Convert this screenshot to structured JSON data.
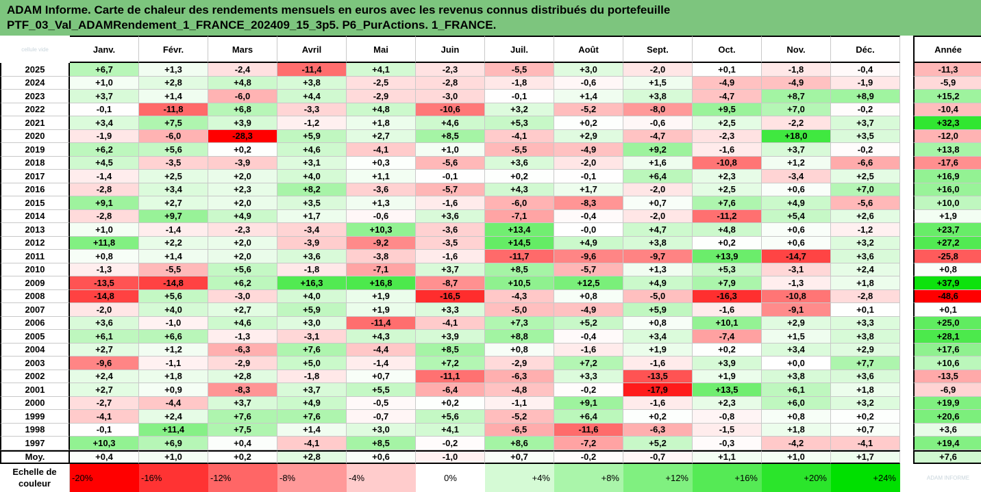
{
  "title": {
    "line1": "ADAM Informe. Carte de chaleur des rendements mensuels en euros avec les revenus connus distribués du portefeuille",
    "line2": "PTF_03_Val_ADAMRendement_1_FRANCE_202409_15_3p5. P6_PurActions. 1_FRANCE."
  },
  "chart_data": {
    "type": "heatmap",
    "corner_watermark": "cellule vide",
    "bottom_watermark": "ADAM INFORME",
    "columns": [
      "Janv.",
      "Févr.",
      "Mars",
      "Avril",
      "Mai",
      "Juin",
      "Juil.",
      "Août",
      "Sept.",
      "Oct.",
      "Nov.",
      "Déc."
    ],
    "annual_label": "Année",
    "rows": [
      {
        "year": "2025",
        "values": [
          "+6,7",
          "+1,3",
          "-2,4",
          "-11,4",
          "+4,1",
          "-2,3",
          "-5,5",
          "+3,0",
          "-2,0",
          "+0,1",
          "-1,8",
          "-0,4"
        ],
        "annual": "-11,3"
      },
      {
        "year": "2024",
        "values": [
          "+1,0",
          "+2,8",
          "+4,8",
          "+3,8",
          "-2,5",
          "-2,8",
          "-1,8",
          "-0,6",
          "+1,5",
          "-4,9",
          "-4,9",
          "-1,9"
        ],
        "annual": "-5,9"
      },
      {
        "year": "2023",
        "values": [
          "+3,7",
          "+1,4",
          "-6,0",
          "+4,4",
          "-2,9",
          "-3,0",
          "-0,1",
          "+1,4",
          "+3,8",
          "-4,7",
          "+8,7",
          "+8,9"
        ],
        "annual": "+15,2"
      },
      {
        "year": "2022",
        "values": [
          "-0,1",
          "-11,8",
          "+6,8",
          "-3,3",
          "+4,8",
          "-10,6",
          "+3,2",
          "-5,2",
          "-8,0",
          "+9,5",
          "+7,0",
          "-0,2"
        ],
        "annual": "-10,4"
      },
      {
        "year": "2021",
        "values": [
          "+3,4",
          "+7,5",
          "+3,9",
          "-1,2",
          "+1,8",
          "+4,6",
          "+5,3",
          "+0,2",
          "-0,6",
          "+2,5",
          "-2,2",
          "+3,7"
        ],
        "annual": "+32,3"
      },
      {
        "year": "2020",
        "values": [
          "-1,9",
          "-6,0",
          "-28,3",
          "+5,9",
          "+2,7",
          "+8,5",
          "-4,1",
          "+2,9",
          "-4,7",
          "-2,3",
          "+18,0",
          "+3,5"
        ],
        "annual": "-12,0"
      },
      {
        "year": "2019",
        "values": [
          "+6,2",
          "+5,6",
          "+0,2",
          "+4,6",
          "-4,1",
          "+1,0",
          "-5,5",
          "-4,9",
          "+9,2",
          "-1,6",
          "+3,7",
          "-0,2"
        ],
        "annual": "+13,8"
      },
      {
        "year": "2018",
        "values": [
          "+4,5",
          "-3,5",
          "-3,9",
          "+3,1",
          "+0,3",
          "-5,6",
          "+3,6",
          "-2,0",
          "+1,6",
          "-10,8",
          "+1,2",
          "-6,6"
        ],
        "annual": "-17,6"
      },
      {
        "year": "2017",
        "values": [
          "-1,4",
          "+2,5",
          "+2,0",
          "+4,0",
          "+1,1",
          "-0,1",
          "+0,2",
          "-0,1",
          "+6,4",
          "+2,3",
          "-3,4",
          "+2,5"
        ],
        "annual": "+16,9"
      },
      {
        "year": "2016",
        "values": [
          "-2,8",
          "+3,4",
          "+2,3",
          "+8,2",
          "-3,6",
          "-5,7",
          "+4,3",
          "+1,7",
          "-2,0",
          "+2,5",
          "+0,6",
          "+7,0"
        ],
        "annual": "+16,0"
      },
      {
        "year": "2015",
        "values": [
          "+9,1",
          "+2,7",
          "+2,0",
          "+3,5",
          "+1,3",
          "-1,6",
          "-6,0",
          "-8,3",
          "+0,7",
          "+7,6",
          "+4,9",
          "-5,6"
        ],
        "annual": "+10,0"
      },
      {
        "year": "2014",
        "values": [
          "-2,8",
          "+9,7",
          "+4,9",
          "+1,7",
          "-0,6",
          "+3,6",
          "-7,1",
          "-0,4",
          "-2,0",
          "-11,2",
          "+5,4",
          "+2,6"
        ],
        "annual": "+1,9"
      },
      {
        "year": "2013",
        "values": [
          "+1,0",
          "-1,4",
          "-2,3",
          "-3,4",
          "+10,3",
          "-3,6",
          "+13,4",
          "-0,0",
          "+4,7",
          "+4,8",
          "+0,6",
          "-1,2"
        ],
        "annual": "+23,7"
      },
      {
        "year": "2012",
        "values": [
          "+11,8",
          "+2,2",
          "+2,0",
          "-3,9",
          "-9,2",
          "-3,5",
          "+14,5",
          "+4,9",
          "+3,8",
          "+0,2",
          "+0,6",
          "+3,2"
        ],
        "annual": "+27,2"
      },
      {
        "year": "2011",
        "values": [
          "+0,8",
          "+1,4",
          "+2,0",
          "+3,6",
          "-3,8",
          "-1,6",
          "-11,7",
          "-9,6",
          "-9,7",
          "+13,9",
          "-14,7",
          "+3,6"
        ],
        "annual": "-25,8"
      },
      {
        "year": "2010",
        "values": [
          "-1,3",
          "-5,5",
          "+5,6",
          "-1,8",
          "-7,1",
          "+3,7",
          "+8,5",
          "-5,7",
          "+1,3",
          "+5,3",
          "-3,1",
          "+2,4"
        ],
        "annual": "+0,8"
      },
      {
        "year": "2009",
        "values": [
          "-13,5",
          "-14,8",
          "+6,2",
          "+16,3",
          "+16,8",
          "-8,7",
          "+10,5",
          "+12,5",
          "+4,9",
          "+7,9",
          "-1,3",
          "+1,8"
        ],
        "annual": "+37,9"
      },
      {
        "year": "2008",
        "values": [
          "-14,8",
          "+5,6",
          "-3,0",
          "+4,0",
          "+1,9",
          "-16,5",
          "-4,3",
          "+0,8",
          "-5,0",
          "-16,3",
          "-10,8",
          "-2,8"
        ],
        "annual": "-48,6"
      },
      {
        "year": "2007",
        "values": [
          "-2,0",
          "+4,0",
          "+2,7",
          "+5,9",
          "+1,9",
          "+3,3",
          "-5,0",
          "-4,9",
          "+5,9",
          "-1,6",
          "-9,1",
          "+0,1"
        ],
        "annual": "+0,1"
      },
      {
        "year": "2006",
        "values": [
          "+3,6",
          "-1,0",
          "+4,6",
          "+3,0",
          "-11,4",
          "-4,1",
          "+7,3",
          "+5,2",
          "+0,8",
          "+10,1",
          "+2,9",
          "+3,3"
        ],
        "annual": "+25,0"
      },
      {
        "year": "2005",
        "values": [
          "+6,1",
          "+6,6",
          "-1,3",
          "-3,1",
          "+4,3",
          "+3,9",
          "+8,8",
          "-0,4",
          "+3,4",
          "-7,4",
          "+1,5",
          "+3,8"
        ],
        "annual": "+28,1"
      },
      {
        "year": "2004",
        "values": [
          "+2,7",
          "+1,2",
          "-6,3",
          "+7,6",
          "-4,4",
          "+8,5",
          "+0,8",
          "-1,6",
          "+1,9",
          "+0,2",
          "+3,4",
          "+2,9"
        ],
        "annual": "+17,6"
      },
      {
        "year": "2003",
        "values": [
          "-9,6",
          "-1,1",
          "-2,9",
          "+5,0",
          "-1,4",
          "+7,2",
          "-2,9",
          "+7,2",
          "-1,6",
          "+3,9",
          "+0,0",
          "+7,7"
        ],
        "annual": "+10,6"
      },
      {
        "year": "2002",
        "values": [
          "+2,4",
          "+1,8",
          "+2,8",
          "-1,8",
          "+0,7",
          "-11,1",
          "-6,3",
          "+3,3",
          "-13,5",
          "+1,9",
          "+3,8",
          "+3,6"
        ],
        "annual": "-13,5"
      },
      {
        "year": "2001",
        "values": [
          "+2,7",
          "+0,9",
          "-8,3",
          "+3,7",
          "+5,5",
          "-6,4",
          "-4,8",
          "-0,2",
          "-17,9",
          "+13,5",
          "+6,1",
          "+1,8"
        ],
        "annual": "-6,9"
      },
      {
        "year": "2000",
        "values": [
          "-2,7",
          "-4,4",
          "+3,7",
          "+4,9",
          "-0,5",
          "+0,2",
          "-1,1",
          "+9,1",
          "-1,6",
          "+2,3",
          "+6,0",
          "+3,2"
        ],
        "annual": "+19,9"
      },
      {
        "year": "1999",
        "values": [
          "-4,1",
          "+2,4",
          "+7,6",
          "+7,6",
          "-0,7",
          "+5,6",
          "-5,2",
          "+6,4",
          "+0,2",
          "-0,8",
          "+0,8",
          "+0,2"
        ],
        "annual": "+20,6"
      },
      {
        "year": "1998",
        "values": [
          "-0,1",
          "+11,4",
          "+7,5",
          "+1,4",
          "+3,0",
          "+4,1",
          "-6,5",
          "-11,6",
          "-6,3",
          "-1,5",
          "+1,8",
          "+0,7"
        ],
        "annual": "+3,6"
      },
      {
        "year": "1997",
        "values": [
          "+10,3",
          "+6,9",
          "+0,4",
          "-4,1",
          "+8,5",
          "-0,2",
          "+8,6",
          "-7,2",
          "+5,2",
          "-0,3",
          "-4,2",
          "-4,1"
        ],
        "annual": "+19,4"
      }
    ],
    "average": {
      "label": "Moy.",
      "values": [
        "+0,4",
        "+1,0",
        "+0,2",
        "+2,8",
        "+0,6",
        "-1,0",
        "+0,7",
        "-0,2",
        "-0,7",
        "+1,1",
        "+1,0",
        "+1,7"
      ],
      "annual": "+7,6"
    },
    "scale": {
      "label_line1": "Echelle de",
      "label_line2": "couleur",
      "stops": [
        "-20%",
        "-16%",
        "-12%",
        "-8%",
        "-4%",
        "0%",
        "+4%",
        "+8%",
        "+12%",
        "+16%",
        "+20%",
        "+24%"
      ],
      "stop_values": [
        -20,
        -16,
        -12,
        -8,
        -4,
        0,
        4,
        8,
        12,
        16,
        20,
        24
      ]
    },
    "colors": {
      "negative_max": "#ff0000",
      "neutral": "#ffffff",
      "positive_max": "#00e000",
      "title_bg": "#7dc57e"
    }
  }
}
